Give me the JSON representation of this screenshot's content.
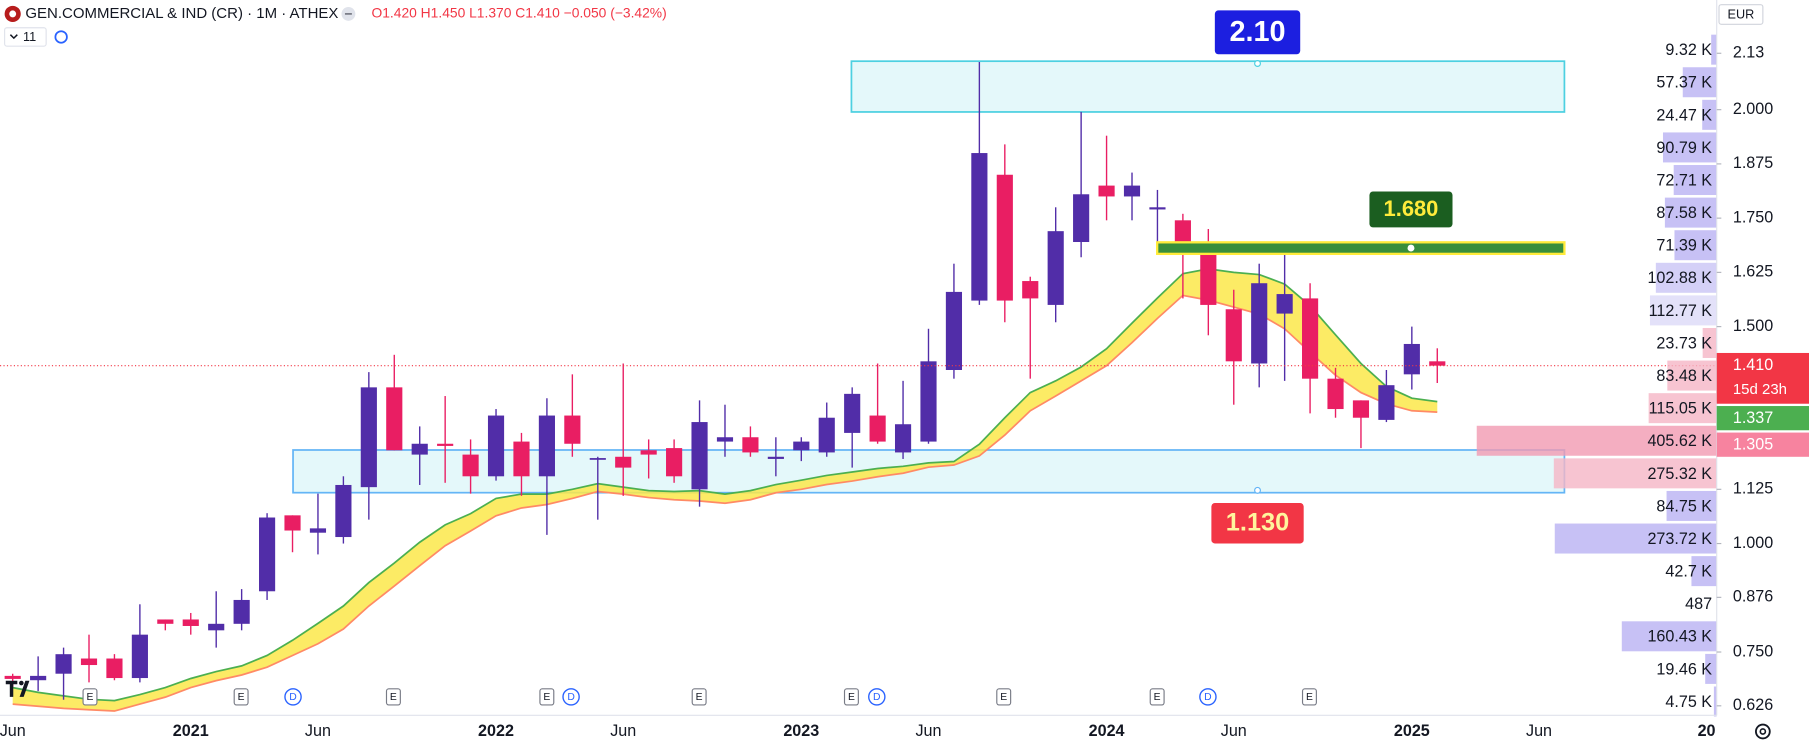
{
  "header": {
    "symbol": "GEN.COMMERCIAL & IND (CR) · 1M · ATHEX",
    "ohlc": "O1.420 H1.450 L1.370 C1.410 −0.050 (−3.42%)",
    "indicator_count": "11",
    "currency": "EUR"
  },
  "chart_data": {
    "type": "candlestick",
    "categories": [
      "Jun",
      null,
      null,
      null,
      null,
      null,
      null,
      "2021",
      null,
      null,
      null,
      null,
      "Jun",
      null,
      null,
      null,
      null,
      null,
      null,
      "2022",
      null,
      null,
      null,
      null,
      "Jun",
      null,
      null,
      null,
      null,
      null,
      null,
      "2023",
      null,
      null,
      null,
      null,
      "Jun",
      null,
      null,
      null,
      null,
      null,
      null,
      "2024",
      null,
      null,
      null,
      null,
      "Jun",
      null,
      null,
      null,
      null,
      null,
      null,
      "2025",
      null,
      null,
      null,
      null,
      "Jun",
      null,
      null,
      null,
      null,
      null,
      null,
      "20"
    ],
    "open": [
      0.695,
      0.685,
      0.7,
      0.735,
      0.735,
      0.69,
      0.825,
      0.825,
      0.8,
      0.815,
      0.89,
      1.065,
      1.025,
      1.015,
      1.13,
      1.36,
      1.205,
      1.23,
      1.205,
      1.155,
      1.235,
      1.155,
      1.295,
      1.195,
      1.2,
      1.215,
      1.22,
      1.125,
      1.235,
      1.245,
      1.195,
      1.215,
      1.21,
      1.255,
      1.295,
      1.21,
      1.235,
      1.4,
      1.56,
      1.85,
      1.605,
      1.55,
      1.695,
      1.825,
      1.8,
      1.77,
      1.745,
      1.675,
      1.54,
      1.415,
      1.53,
      1.565,
      1.38,
      1.33,
      1.285,
      1.39,
      1.42,
      null,
      null,
      null,
      null,
      null,
      null,
      null,
      null,
      null,
      null,
      null
    ],
    "high": [
      0.7,
      0.74,
      0.76,
      0.79,
      0.745,
      0.86,
      0.825,
      0.84,
      0.89,
      0.895,
      1.07,
      1.065,
      1.115,
      1.155,
      1.395,
      1.435,
      1.27,
      1.34,
      1.24,
      1.31,
      1.255,
      1.335,
      1.39,
      1.2,
      1.415,
      1.24,
      1.24,
      1.33,
      1.32,
      1.27,
      1.245,
      1.245,
      1.325,
      1.36,
      1.415,
      1.375,
      1.495,
      1.645,
      2.11,
      1.92,
      1.615,
      1.775,
      1.995,
      1.94,
      1.855,
      1.815,
      1.76,
      1.725,
      1.585,
      1.645,
      1.68,
      1.6,
      1.405,
      1.33,
      1.4,
      1.5,
      1.45,
      null,
      null,
      null,
      null,
      null,
      null,
      null,
      null,
      null,
      null,
      null
    ],
    "low": [
      0.67,
      0.66,
      0.64,
      0.68,
      0.685,
      0.68,
      0.8,
      0.79,
      0.76,
      0.8,
      0.87,
      0.98,
      0.975,
      1.0,
      1.055,
      1.215,
      1.135,
      1.14,
      1.115,
      1.145,
      1.11,
      1.02,
      1.2,
      1.055,
      1.11,
      1.15,
      1.14,
      1.085,
      1.2,
      1.2,
      1.155,
      1.19,
      1.2,
      1.175,
      1.23,
      1.195,
      1.23,
      1.38,
      1.55,
      1.51,
      1.38,
      1.51,
      1.66,
      1.745,
      1.745,
      1.69,
      1.565,
      1.48,
      1.32,
      1.36,
      1.375,
      1.3,
      1.29,
      1.22,
      1.28,
      1.355,
      1.37,
      null,
      null,
      null,
      null,
      null,
      null,
      null,
      null,
      null,
      null,
      null
    ],
    "close": [
      0.688,
      0.695,
      0.745,
      0.72,
      0.69,
      0.79,
      0.815,
      0.81,
      0.815,
      0.87,
      1.06,
      1.03,
      1.035,
      1.135,
      1.36,
      1.215,
      1.23,
      1.225,
      1.155,
      1.295,
      1.155,
      1.295,
      1.23,
      1.197,
      1.175,
      1.205,
      1.155,
      1.28,
      1.245,
      1.21,
      1.2,
      1.235,
      1.29,
      1.345,
      1.235,
      1.275,
      1.42,
      1.58,
      1.9,
      1.56,
      1.565,
      1.72,
      1.805,
      1.8,
      1.825,
      1.775,
      1.675,
      1.55,
      1.42,
      1.6,
      1.575,
      1.38,
      1.31,
      1.29,
      1.365,
      1.46,
      1.41,
      null,
      null,
      null,
      null,
      null,
      null,
      null,
      null,
      null,
      null,
      null
    ],
    "up_color": "#512da8",
    "down_color": "#e91e63",
    "ribbon": {
      "upper": [
        0.668,
        0.657,
        0.649,
        0.641,
        0.638,
        0.652,
        0.668,
        0.689,
        0.705,
        0.718,
        0.742,
        0.777,
        0.816,
        0.856,
        0.91,
        0.955,
        1.003,
        1.043,
        1.069,
        1.104,
        1.114,
        1.114,
        1.125,
        1.138,
        1.13,
        1.122,
        1.12,
        1.122,
        1.114,
        1.122,
        1.136,
        1.146,
        1.157,
        1.165,
        1.173,
        1.178,
        1.186,
        1.189,
        1.229,
        1.29,
        1.348,
        1.375,
        1.407,
        1.449,
        1.508,
        1.566,
        1.622,
        1.633,
        1.625,
        1.62,
        1.598,
        1.548,
        1.481,
        1.415,
        1.362,
        1.335,
        1.327,
        null,
        null,
        null,
        null,
        null,
        null,
        null,
        null,
        null,
        null,
        null
      ],
      "lower": [
        0.63,
        0.625,
        0.62,
        0.617,
        0.614,
        0.63,
        0.646,
        0.668,
        0.684,
        0.697,
        0.715,
        0.742,
        0.769,
        0.803,
        0.856,
        0.902,
        0.949,
        0.995,
        1.029,
        1.064,
        1.082,
        1.09,
        1.104,
        1.12,
        1.114,
        1.106,
        1.101,
        1.098,
        1.093,
        1.101,
        1.117,
        1.125,
        1.136,
        1.144,
        1.154,
        1.162,
        1.176,
        1.181,
        1.202,
        1.25,
        1.306,
        1.34,
        1.375,
        1.41,
        1.463,
        1.519,
        1.572,
        1.561,
        1.545,
        1.529,
        1.495,
        1.441,
        1.388,
        1.348,
        1.322,
        1.306,
        1.303,
        null,
        null,
        null,
        null,
        null,
        null,
        null,
        null,
        null,
        null,
        null
      ],
      "upper_color": "#4caf50",
      "lower_color": "#ff8a65",
      "fill": "#fbe84a"
    },
    "ylim": [
      0.62,
      2.25
    ],
    "yticks": [
      2.13,
      {
        "value": 2,
        "label": "2.000"
      },
      1.875,
      {
        "value": 1.75,
        "label": "1.750"
      },
      1.625,
      {
        "value": 1.5,
        "label": "1.500"
      },
      1.125,
      {
        "value": 1,
        "label": "1.000"
      },
      0.876,
      {
        "value": 0.75,
        "label": "0.750"
      },
      0.626
    ],
    "grid": false,
    "price_labels": [
      {
        "value": 1.41,
        "label": "1.410",
        "countdown": "15d 23h",
        "color": "#f23645"
      },
      {
        "value": 1.337,
        "label": "1.337",
        "color": "#4caf50"
      },
      {
        "value": 1.305,
        "label": "1.305",
        "color": "#f7839f"
      }
    ],
    "annotations": [
      "2.10",
      "1.680",
      "1.130"
    ],
    "volume_profile": {
      "values": [
        9320,
        57370,
        24470,
        90790,
        72710,
        87580,
        71390,
        102880,
        112770,
        23730,
        83480,
        115050,
        405620,
        275320,
        84750,
        273720,
        42700,
        487,
        160430,
        19460,
        4750
      ],
      "value_labels": [
        "9.32 K",
        "57.37 K",
        "24.47 K",
        "90.79 K",
        "72.71 K",
        "87.58 K",
        "71.39 K",
        "102.88 K",
        "112.77 K",
        "23.73 K",
        "83.48 K",
        "115.05 K",
        "405.62 K",
        "275.32 K",
        "84.75 K",
        "273.72 K",
        "42.7 K",
        "487",
        "160.43 K",
        "19.46 K",
        "4.75 K"
      ],
      "colors": [
        "#b9b1f2",
        "#b9b1f2",
        "#b9b1f2",
        "#b9b1f2",
        "#b9b1f2",
        "#b9b1f2",
        "#b9b1f2",
        "#c9c4f5",
        "#dcd9f8",
        "#f5b5c6",
        "#f5b5c6",
        "#f5b5c6",
        "#f19ab2",
        "#f5b5c6",
        "#b9b1f2",
        "#b9b1f2",
        "#b9b1f2",
        "#f6c48a",
        "#b9b1f2",
        "#b9b1f2",
        "#b9b1f2"
      ]
    },
    "events": [
      "E",
      "E",
      "D",
      "E",
      "E",
      "D",
      "E",
      "E",
      "D",
      "E",
      "E",
      "D",
      "E"
    ]
  }
}
